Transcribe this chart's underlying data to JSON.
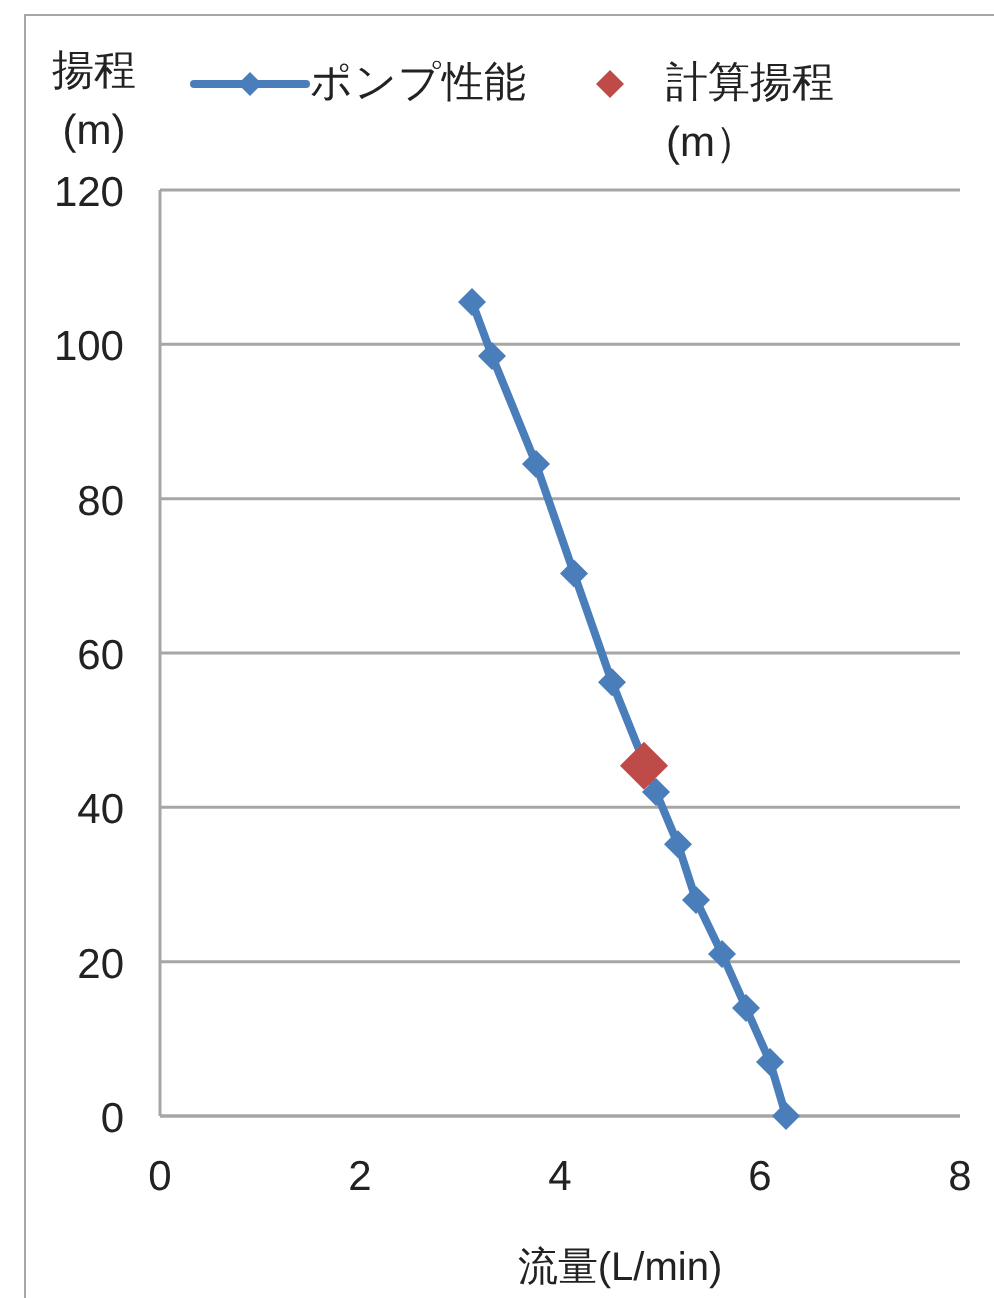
{
  "chart_data": {
    "type": "line",
    "xlabel": "流量(L/min)",
    "ylabel": "揚程\n(m)",
    "xlim": [
      0,
      8
    ],
    "xticks": [
      0,
      2,
      4,
      6,
      8
    ],
    "ylim": [
      0,
      120
    ],
    "yticks": [
      0,
      20,
      40,
      60,
      80,
      100,
      120
    ],
    "grid": "y",
    "legend": "top",
    "marker": "diamond",
    "series": [
      {
        "name": "ポンプ性能",
        "color": "#4a7ebb",
        "x": [
          3.12,
          3.32,
          3.76,
          4.14,
          4.52,
          4.96,
          5.18,
          5.36,
          5.62,
          5.86,
          6.1,
          6.26
        ],
        "values": [
          105.5,
          98.5,
          84.5,
          70.3,
          56.2,
          42,
          35.2,
          28,
          21,
          14,
          7,
          0
        ]
      },
      {
        "name": "計算揚程(m）",
        "type": "scatter",
        "color": "#be4b48",
        "x": [
          4.84
        ],
        "values": [
          45.4
        ]
      }
    ]
  }
}
